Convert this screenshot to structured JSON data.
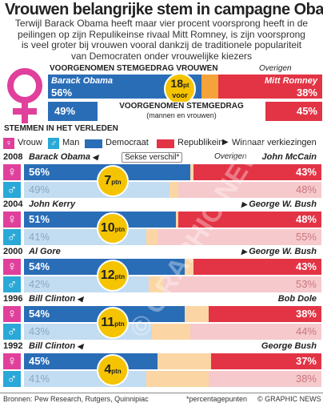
{
  "title": "Vrouwen belangrijke stem in campagne Obama",
  "subtitle_lines": [
    "Terwijl Barack Obama heeft maar vier procent voorsprong heeft in de",
    "peilingen op zijn  Repulikeinse rivaal Mitt Romney, is zijn voorsprong",
    "is veel groter bij vrouwen vooral dankzij de traditionele populariteit",
    "van Democraten onder vrouwelijke kiezers"
  ],
  "current": {
    "women_header": "VOORGENOMEN STEMGEDRAG VROUWEN",
    "others_label": "Overigen",
    "obama_name": "Barack Obama",
    "romney_name": "Mitt Romney",
    "women_obama": "56%",
    "women_romney": "38%",
    "lead_value": "18",
    "lead_unit": "pt",
    "lead_word": "voor",
    "all_obama": "49%",
    "all_romney": "45%",
    "all_header": "VOORGENOMEN STEMGEDRAG",
    "all_sub": "(mannen en vrouwen)"
  },
  "past_header": "STEMMEN IN HET VERLEDEN",
  "legend": {
    "woman": "Vrouw",
    "man": "Man",
    "dem": "Democraat",
    "rep": "Republikein",
    "winner": "Winnaar verkiezingen"
  },
  "gender_gap_label": "Sekse verschil*",
  "others_label": "Overigen",
  "pt_unit": "ptn",
  "elections": [
    {
      "year": "2008",
      "dem": "Barack Obama",
      "rep": "John McCain",
      "winner": "dem",
      "gap": "7",
      "women": {
        "dem": "56%",
        "rep": "43%"
      },
      "men": {
        "dem": "49%",
        "rep": "48%"
      }
    },
    {
      "year": "2004",
      "dem": "John Kerry",
      "rep": "George W. Bush",
      "winner": "rep",
      "gap": "10",
      "women": {
        "dem": "51%",
        "rep": "48%"
      },
      "men": {
        "dem": "41%",
        "rep": "55%"
      }
    },
    {
      "year": "2000",
      "dem": "Al Gore",
      "rep": "George W. Bush",
      "winner": "rep",
      "gap": "12",
      "women": {
        "dem": "54%",
        "rep": "43%"
      },
      "men": {
        "dem": "42%",
        "rep": "53%"
      }
    },
    {
      "year": "1996",
      "dem": "Bill Clinton",
      "rep": "Bob Dole",
      "winner": "dem",
      "gap": "11",
      "women": {
        "dem": "54%",
        "rep": "38%"
      },
      "men": {
        "dem": "43%",
        "rep": "44%"
      }
    },
    {
      "year": "1992",
      "dem": "Bill Clinton",
      "rep": "George Bush",
      "winner": "dem",
      "gap": "4",
      "women": {
        "dem": "45%",
        "rep": "37%"
      },
      "men": {
        "dem": "41%",
        "rep": "38%"
      }
    }
  ],
  "footer_sources": "Bronnen: Pew Research, Rutgers, Quinnipiac",
  "footer_note": "*percentagepunten",
  "footer_credit": "© GRAPHIC NEWS",
  "watermark": "© GRAPHIC NEWS",
  "chart_data": {
    "type": "bar",
    "title": "Vrouwen belangrijke stem in campagne Obama",
    "current_poll": {
      "categories": [
        "Vrouwen",
        "Mannen en vrouwen"
      ],
      "series": [
        {
          "name": "Barack Obama",
          "values": [
            56,
            49
          ]
        },
        {
          "name": "Overigen",
          "values": [
            6,
            6
          ]
        },
        {
          "name": "Mitt Romney",
          "values": [
            38,
            45
          ]
        }
      ]
    },
    "categories": [
      "2008 Vrouw",
      "2008 Man",
      "2004 Vrouw",
      "2004 Man",
      "2000 Vrouw",
      "2000 Man",
      "1996 Vrouw",
      "1996 Man",
      "1992 Vrouw",
      "1992 Man"
    ],
    "series": [
      {
        "name": "Democraat",
        "values": [
          56,
          49,
          51,
          41,
          54,
          42,
          54,
          43,
          45,
          41
        ]
      },
      {
        "name": "Republikein",
        "values": [
          43,
          48,
          48,
          55,
          43,
          53,
          38,
          44,
          37,
          38
        ]
      }
    ],
    "gender_gap_ptn": [
      7,
      10,
      12,
      11,
      4
    ],
    "xlim": [
      0,
      100
    ]
  }
}
